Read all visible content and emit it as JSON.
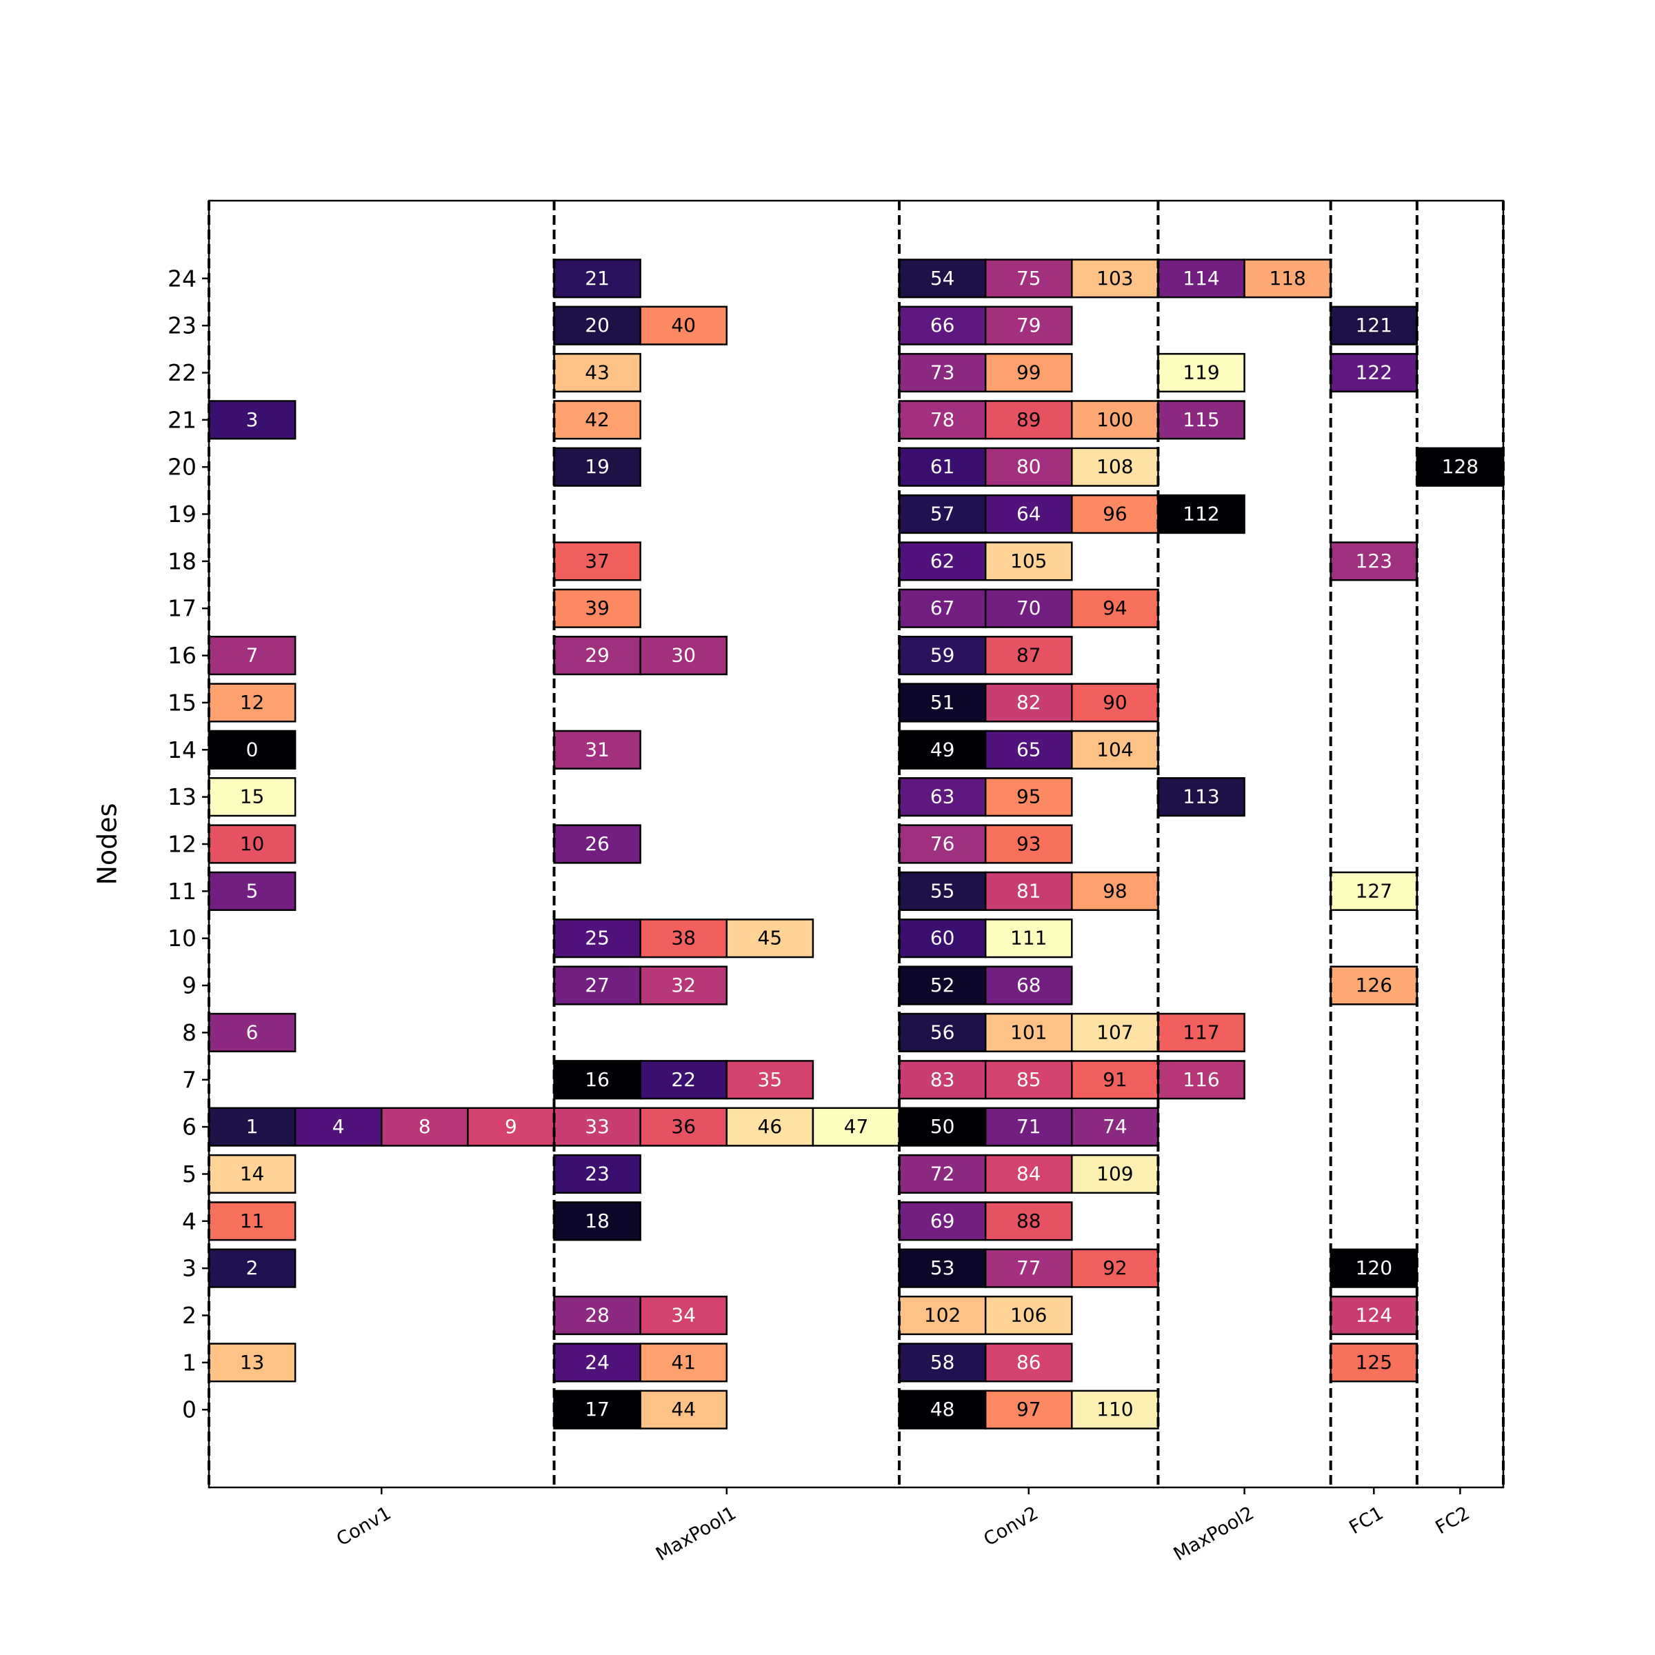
{
  "chart_data": {
    "type": "schedule",
    "ylabel": "Nodes",
    "xlim": [
      0,
      15
    ],
    "ylim": [
      -1.65,
      25.65
    ],
    "yticks": [
      0,
      1,
      2,
      3,
      4,
      5,
      6,
      7,
      8,
      9,
      10,
      11,
      12,
      13,
      14,
      15,
      16,
      17,
      18,
      19,
      20,
      21,
      22,
      23,
      24
    ],
    "xticks": [
      {
        "value": 2,
        "label": "Conv1"
      },
      {
        "value": 6,
        "label": "MaxPool1"
      },
      {
        "value": 9.5,
        "label": "Conv2"
      },
      {
        "value": 12,
        "label": "MaxPool2"
      },
      {
        "value": 13.5,
        "label": "FC1"
      },
      {
        "value": 14.5,
        "label": "FC2"
      }
    ],
    "boundaries": [
      0,
      4,
      8,
      11,
      13,
      14,
      15
    ],
    "tasks": [
      {
        "id": 3,
        "node": 21,
        "start": 0,
        "color": "#3b0f70"
      },
      {
        "id": 7,
        "node": 16,
        "start": 0,
        "color": "#a3307e"
      },
      {
        "id": 12,
        "node": 15,
        "start": 0,
        "color": "#fea16e"
      },
      {
        "id": 0,
        "node": 14,
        "start": 0,
        "color": "#000004"
      },
      {
        "id": 15,
        "node": 13,
        "start": 0,
        "color": "#fcfdbf"
      },
      {
        "id": 10,
        "node": 12,
        "start": 0,
        "color": "#e75263"
      },
      {
        "id": 5,
        "node": 11,
        "start": 0,
        "color": "#721f81"
      },
      {
        "id": 6,
        "node": 8,
        "start": 0,
        "color": "#8c2981"
      },
      {
        "id": 1,
        "node": 6,
        "start": 0,
        "color": "#1d1147"
      },
      {
        "id": 4,
        "node": 6,
        "start": 1,
        "color": "#51127c"
      },
      {
        "id": 8,
        "node": 6,
        "start": 2,
        "color": "#b73779"
      },
      {
        "id": 9,
        "node": 6,
        "start": 3,
        "color": "#d3436e"
      },
      {
        "id": 14,
        "node": 5,
        "start": 0,
        "color": "#fed395"
      },
      {
        "id": 11,
        "node": 4,
        "start": 0,
        "color": "#f7705c"
      },
      {
        "id": 2,
        "node": 3,
        "start": 0,
        "color": "#221150"
      },
      {
        "id": 13,
        "node": 1,
        "start": 0,
        "color": "#fec287"
      },
      {
        "id": 21,
        "node": 24,
        "start": 4,
        "color": "#2c115f"
      },
      {
        "id": 20,
        "node": 23,
        "start": 4,
        "color": "#1d1147"
      },
      {
        "id": 40,
        "node": 23,
        "start": 5,
        "color": "#fc8961"
      },
      {
        "id": 43,
        "node": 22,
        "start": 4,
        "color": "#fec287"
      },
      {
        "id": 42,
        "node": 21,
        "start": 4,
        "color": "#fea16e"
      },
      {
        "id": 19,
        "node": 20,
        "start": 4,
        "color": "#1d1147"
      },
      {
        "id": 37,
        "node": 18,
        "start": 4,
        "color": "#f1605d"
      },
      {
        "id": 39,
        "node": 17,
        "start": 4,
        "color": "#fc8961"
      },
      {
        "id": 29,
        "node": 16,
        "start": 4,
        "color": "#9f2f7f"
      },
      {
        "id": 30,
        "node": 16,
        "start": 5,
        "color": "#a3307e"
      },
      {
        "id": 31,
        "node": 14,
        "start": 4,
        "color": "#a3307e"
      },
      {
        "id": 26,
        "node": 12,
        "start": 4,
        "color": "#721f81"
      },
      {
        "id": 25,
        "node": 10,
        "start": 4,
        "color": "#51127c"
      },
      {
        "id": 38,
        "node": 10,
        "start": 5,
        "color": "#f1605d"
      },
      {
        "id": 45,
        "node": 10,
        "start": 6,
        "color": "#fed395"
      },
      {
        "id": 27,
        "node": 9,
        "start": 4,
        "color": "#721f81"
      },
      {
        "id": 32,
        "node": 9,
        "start": 5,
        "color": "#b73779"
      },
      {
        "id": 16,
        "node": 7,
        "start": 4,
        "color": "#000004"
      },
      {
        "id": 22,
        "node": 7,
        "start": 5,
        "color": "#3b0f70"
      },
      {
        "id": 35,
        "node": 7,
        "start": 6,
        "color": "#d3436e"
      },
      {
        "id": 33,
        "node": 6,
        "start": 4,
        "color": "#c83e73"
      },
      {
        "id": 36,
        "node": 6,
        "start": 5,
        "color": "#e75263"
      },
      {
        "id": 46,
        "node": 6,
        "start": 6,
        "color": "#fde2a3"
      },
      {
        "id": 47,
        "node": 6,
        "start": 7,
        "color": "#fcfdbf"
      },
      {
        "id": 23,
        "node": 5,
        "start": 4,
        "color": "#3b0f70"
      },
      {
        "id": 18,
        "node": 4,
        "start": 4,
        "color": "#0d0829"
      },
      {
        "id": 28,
        "node": 2,
        "start": 4,
        "color": "#8c2981"
      },
      {
        "id": 34,
        "node": 2,
        "start": 5,
        "color": "#d3436e"
      },
      {
        "id": 24,
        "node": 1,
        "start": 4,
        "color": "#51127c"
      },
      {
        "id": 41,
        "node": 1,
        "start": 5,
        "color": "#fea16e"
      },
      {
        "id": 17,
        "node": 0,
        "start": 4,
        "color": "#000004"
      },
      {
        "id": 44,
        "node": 0,
        "start": 5,
        "color": "#fec287"
      },
      {
        "id": 54,
        "node": 24,
        "start": 8,
        "color": "#1d1147"
      },
      {
        "id": 75,
        "node": 24,
        "start": 9,
        "color": "#a3307e"
      },
      {
        "id": 103,
        "node": 24,
        "start": 10,
        "color": "#fec287"
      },
      {
        "id": 66,
        "node": 23,
        "start": 8,
        "color": "#5f187f"
      },
      {
        "id": 79,
        "node": 23,
        "start": 9,
        "color": "#a3307e"
      },
      {
        "id": 73,
        "node": 22,
        "start": 8,
        "color": "#8c2981"
      },
      {
        "id": 99,
        "node": 22,
        "start": 9,
        "color": "#fea16e"
      },
      {
        "id": 78,
        "node": 21,
        "start": 8,
        "color": "#a3307e"
      },
      {
        "id": 89,
        "node": 21,
        "start": 9,
        "color": "#e75263"
      },
      {
        "id": 100,
        "node": 21,
        "start": 10,
        "color": "#fea973"
      },
      {
        "id": 61,
        "node": 20,
        "start": 8,
        "color": "#3b0f70"
      },
      {
        "id": 80,
        "node": 20,
        "start": 9,
        "color": "#a3307e"
      },
      {
        "id": 108,
        "node": 20,
        "start": 10,
        "color": "#fde2a3"
      },
      {
        "id": 57,
        "node": 19,
        "start": 8,
        "color": "#221150"
      },
      {
        "id": 64,
        "node": 19,
        "start": 9,
        "color": "#51127c"
      },
      {
        "id": 96,
        "node": 19,
        "start": 10,
        "color": "#fc8961"
      },
      {
        "id": 62,
        "node": 18,
        "start": 8,
        "color": "#51127c"
      },
      {
        "id": 105,
        "node": 18,
        "start": 9,
        "color": "#fed395"
      },
      {
        "id": 67,
        "node": 17,
        "start": 8,
        "color": "#721f81"
      },
      {
        "id": 70,
        "node": 17,
        "start": 9,
        "color": "#721f81"
      },
      {
        "id": 94,
        "node": 17,
        "start": 10,
        "color": "#f7705c"
      },
      {
        "id": 59,
        "node": 16,
        "start": 8,
        "color": "#2c115f"
      },
      {
        "id": 87,
        "node": 16,
        "start": 9,
        "color": "#e75263"
      },
      {
        "id": 51,
        "node": 15,
        "start": 8,
        "color": "#0d0829"
      },
      {
        "id": 82,
        "node": 15,
        "start": 9,
        "color": "#c83e73"
      },
      {
        "id": 90,
        "node": 15,
        "start": 10,
        "color": "#f1605d"
      },
      {
        "id": 49,
        "node": 14,
        "start": 8,
        "color": "#000004"
      },
      {
        "id": 65,
        "node": 14,
        "start": 9,
        "color": "#51127c"
      },
      {
        "id": 104,
        "node": 14,
        "start": 10,
        "color": "#fec287"
      },
      {
        "id": 63,
        "node": 13,
        "start": 8,
        "color": "#5f187f"
      },
      {
        "id": 95,
        "node": 13,
        "start": 9,
        "color": "#fc8961"
      },
      {
        "id": 76,
        "node": 12,
        "start": 8,
        "color": "#9f2f7f"
      },
      {
        "id": 93,
        "node": 12,
        "start": 9,
        "color": "#f7705c"
      },
      {
        "id": 55,
        "node": 11,
        "start": 8,
        "color": "#1d1147"
      },
      {
        "id": 81,
        "node": 11,
        "start": 9,
        "color": "#c83e73"
      },
      {
        "id": 98,
        "node": 11,
        "start": 10,
        "color": "#fea16e"
      },
      {
        "id": 60,
        "node": 10,
        "start": 8,
        "color": "#3b0f70"
      },
      {
        "id": 111,
        "node": 10,
        "start": 9,
        "color": "#fcfdbf"
      },
      {
        "id": 52,
        "node": 9,
        "start": 8,
        "color": "#0d0829"
      },
      {
        "id": 68,
        "node": 9,
        "start": 9,
        "color": "#721f81"
      },
      {
        "id": 56,
        "node": 8,
        "start": 8,
        "color": "#1d1147"
      },
      {
        "id": 101,
        "node": 8,
        "start": 9,
        "color": "#fec287"
      },
      {
        "id": 107,
        "node": 8,
        "start": 10,
        "color": "#fde2a3"
      },
      {
        "id": 83,
        "node": 7,
        "start": 8,
        "color": "#c83e73"
      },
      {
        "id": 85,
        "node": 7,
        "start": 9,
        "color": "#d3436e"
      },
      {
        "id": 91,
        "node": 7,
        "start": 10,
        "color": "#f1605d"
      },
      {
        "id": 50,
        "node": 6,
        "start": 8,
        "color": "#000004"
      },
      {
        "id": 71,
        "node": 6,
        "start": 9,
        "color": "#721f81"
      },
      {
        "id": 74,
        "node": 6,
        "start": 10,
        "color": "#8c2981"
      },
      {
        "id": 72,
        "node": 5,
        "start": 8,
        "color": "#8c2981"
      },
      {
        "id": 84,
        "node": 5,
        "start": 9,
        "color": "#d3436e"
      },
      {
        "id": 109,
        "node": 5,
        "start": 10,
        "color": "#fcefb2"
      },
      {
        "id": 69,
        "node": 4,
        "start": 8,
        "color": "#721f81"
      },
      {
        "id": 88,
        "node": 4,
        "start": 9,
        "color": "#e75263"
      },
      {
        "id": 53,
        "node": 3,
        "start": 8,
        "color": "#0d0829"
      },
      {
        "id": 77,
        "node": 3,
        "start": 9,
        "color": "#a3307e"
      },
      {
        "id": 92,
        "node": 3,
        "start": 10,
        "color": "#f1605d"
      },
      {
        "id": 102,
        "node": 2,
        "start": 8,
        "color": "#fec287"
      },
      {
        "id": 106,
        "node": 2,
        "start": 9,
        "color": "#fed395"
      },
      {
        "id": 58,
        "node": 1,
        "start": 8,
        "color": "#221150"
      },
      {
        "id": 86,
        "node": 1,
        "start": 9,
        "color": "#d3436e"
      },
      {
        "id": 48,
        "node": 0,
        "start": 8,
        "color": "#000004"
      },
      {
        "id": 97,
        "node": 0,
        "start": 9,
        "color": "#fc8961"
      },
      {
        "id": 110,
        "node": 0,
        "start": 10,
        "color": "#fcefb2"
      },
      {
        "id": 114,
        "node": 24,
        "start": 11,
        "color": "#721f81"
      },
      {
        "id": 118,
        "node": 24,
        "start": 12,
        "color": "#fea973"
      },
      {
        "id": 119,
        "node": 22,
        "start": 11,
        "color": "#fcfdbf"
      },
      {
        "id": 115,
        "node": 21,
        "start": 11,
        "color": "#8c2981"
      },
      {
        "id": 112,
        "node": 19,
        "start": 11,
        "color": "#000004"
      },
      {
        "id": 113,
        "node": 13,
        "start": 11,
        "color": "#1d1147"
      },
      {
        "id": 117,
        "node": 8,
        "start": 11,
        "color": "#f1605d"
      },
      {
        "id": 116,
        "node": 7,
        "start": 11,
        "color": "#b73779"
      },
      {
        "id": 121,
        "node": 23,
        "start": 13,
        "color": "#1d1147"
      },
      {
        "id": 122,
        "node": 22,
        "start": 13,
        "color": "#5f187f"
      },
      {
        "id": 123,
        "node": 18,
        "start": 13,
        "color": "#9f2f7f"
      },
      {
        "id": 127,
        "node": 11,
        "start": 13,
        "color": "#fcfdbf"
      },
      {
        "id": 126,
        "node": 9,
        "start": 13,
        "color": "#fea973"
      },
      {
        "id": 120,
        "node": 3,
        "start": 13,
        "color": "#000004"
      },
      {
        "id": 124,
        "node": 2,
        "start": 13,
        "color": "#c83e73"
      },
      {
        "id": 125,
        "node": 1,
        "start": 13,
        "color": "#f7705c"
      },
      {
        "id": 128,
        "node": 20,
        "start": 14,
        "color": "#000004"
      }
    ]
  }
}
